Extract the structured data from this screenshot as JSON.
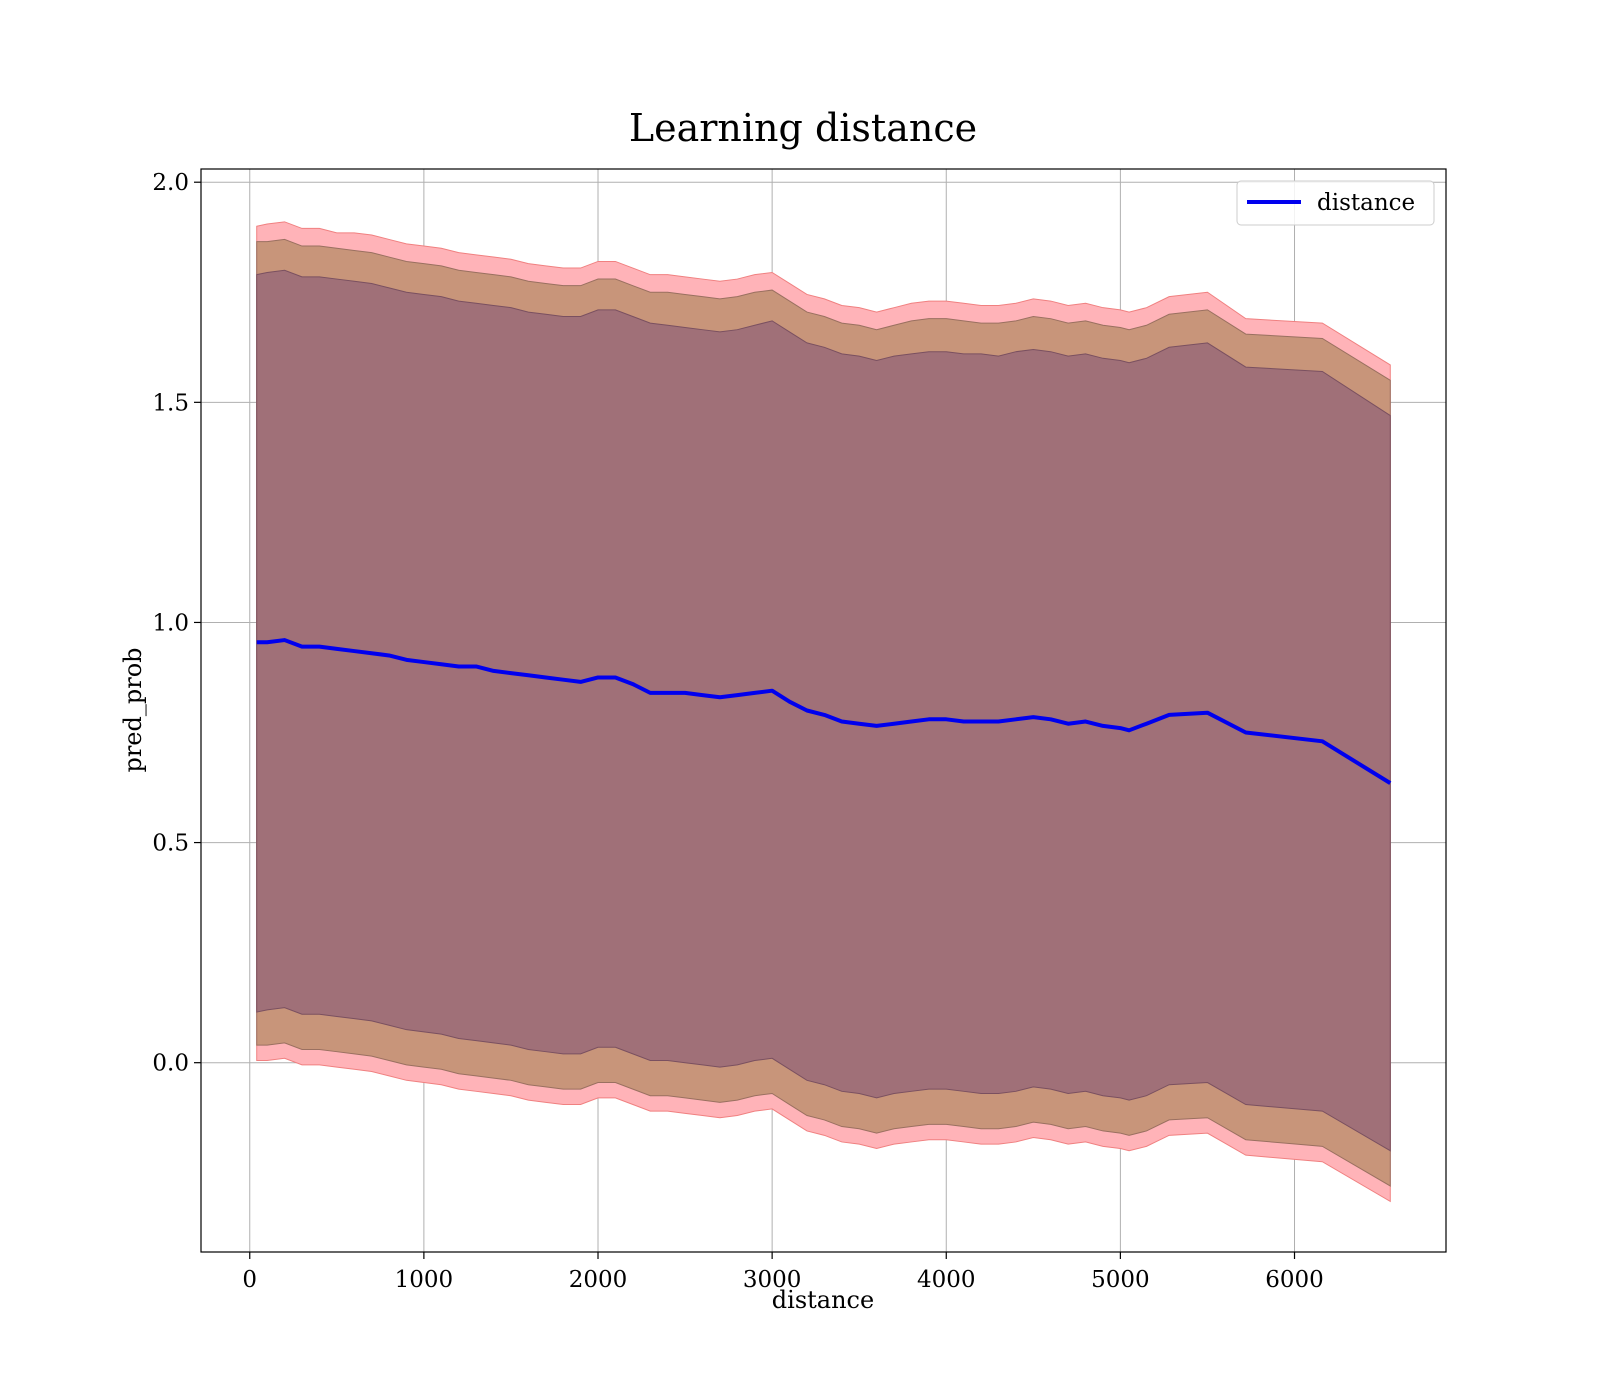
{
  "chart_data": {
    "type": "line",
    "title": "Learning distance",
    "xlabel": "distance",
    "ylabel": "pred_prob",
    "xlim": [
      -280,
      6870
    ],
    "ylim": [
      -0.43,
      2.03
    ],
    "xticks": [
      0,
      1000,
      2000,
      3000,
      4000,
      5000,
      6000
    ],
    "xtick_labels": [
      "0",
      "1000",
      "2000",
      "3000",
      "4000",
      "5000",
      "6000"
    ],
    "yticks": [
      0.0,
      0.5,
      1.0,
      1.5,
      2.0
    ],
    "ytick_labels": [
      "0.0",
      "0.5",
      "1.0",
      "1.5",
      "2.0"
    ],
    "grid": true,
    "legend_position": "top-right",
    "colors": {
      "line": "#0000ee",
      "band_outer": "#ffb3b8",
      "band_outer_edge": "#f08080",
      "band_middle": "#c8957a",
      "band_inner": "#a07078",
      "grid": "#b0b0b0"
    },
    "series": [
      {
        "name": "distance",
        "x": [
          40,
          100,
          200,
          300,
          400,
          500,
          600,
          700,
          800,
          900,
          1000,
          1100,
          1200,
          1300,
          1400,
          1500,
          1600,
          1700,
          1800,
          1900,
          2000,
          2100,
          2200,
          2300,
          2400,
          2500,
          2600,
          2700,
          2800,
          2900,
          3000,
          3100,
          3200,
          3300,
          3400,
          3500,
          3600,
          3700,
          3800,
          3900,
          4000,
          4100,
          4200,
          4300,
          4400,
          4500,
          4600,
          4700,
          4800,
          4900,
          5000,
          5050,
          5150,
          5280,
          5500,
          5720,
          6160,
          6550
        ],
        "values": [
          0.955,
          0.955,
          0.96,
          0.945,
          0.945,
          0.94,
          0.935,
          0.93,
          0.925,
          0.915,
          0.91,
          0.905,
          0.9,
          0.9,
          0.89,
          0.885,
          0.88,
          0.875,
          0.87,
          0.865,
          0.875,
          0.875,
          0.86,
          0.84,
          0.84,
          0.84,
          0.835,
          0.83,
          0.835,
          0.84,
          0.845,
          0.82,
          0.8,
          0.79,
          0.775,
          0.77,
          0.765,
          0.77,
          0.775,
          0.78,
          0.78,
          0.775,
          0.775,
          0.775,
          0.78,
          0.785,
          0.78,
          0.77,
          0.775,
          0.765,
          0.76,
          0.755,
          0.77,
          0.79,
          0.795,
          0.75,
          0.73,
          0.635
        ],
        "band_outer_upper": [
          1.9,
          1.905,
          1.91,
          1.895,
          1.895,
          1.885,
          1.885,
          1.88,
          1.87,
          1.86,
          1.855,
          1.85,
          1.84,
          1.835,
          1.83,
          1.825,
          1.815,
          1.81,
          1.805,
          1.805,
          1.82,
          1.82,
          1.805,
          1.79,
          1.79,
          1.785,
          1.78,
          1.775,
          1.78,
          1.79,
          1.795,
          1.77,
          1.745,
          1.735,
          1.72,
          1.715,
          1.705,
          1.715,
          1.725,
          1.73,
          1.73,
          1.725,
          1.72,
          1.72,
          1.725,
          1.735,
          1.73,
          1.72,
          1.725,
          1.715,
          1.71,
          1.705,
          1.715,
          1.74,
          1.75,
          1.69,
          1.68,
          1.585
        ],
        "band_middle_upper": [
          1.865,
          1.865,
          1.87,
          1.855,
          1.855,
          1.85,
          1.845,
          1.84,
          1.83,
          1.82,
          1.815,
          1.81,
          1.8,
          1.795,
          1.79,
          1.785,
          1.775,
          1.77,
          1.765,
          1.765,
          1.78,
          1.78,
          1.765,
          1.75,
          1.75,
          1.745,
          1.74,
          1.735,
          1.74,
          1.75,
          1.755,
          1.73,
          1.705,
          1.695,
          1.68,
          1.675,
          1.665,
          1.675,
          1.685,
          1.69,
          1.69,
          1.685,
          1.68,
          1.68,
          1.685,
          1.695,
          1.69,
          1.68,
          1.685,
          1.675,
          1.67,
          1.665,
          1.675,
          1.7,
          1.71,
          1.655,
          1.645,
          1.55
        ],
        "band_inner_upper": [
          1.79,
          1.795,
          1.8,
          1.785,
          1.785,
          1.78,
          1.775,
          1.77,
          1.76,
          1.75,
          1.745,
          1.74,
          1.73,
          1.725,
          1.72,
          1.715,
          1.705,
          1.7,
          1.695,
          1.695,
          1.71,
          1.71,
          1.695,
          1.68,
          1.675,
          1.67,
          1.665,
          1.66,
          1.665,
          1.675,
          1.685,
          1.66,
          1.635,
          1.625,
          1.61,
          1.605,
          1.595,
          1.605,
          1.61,
          1.615,
          1.615,
          1.61,
          1.61,
          1.605,
          1.615,
          1.62,
          1.615,
          1.605,
          1.61,
          1.6,
          1.595,
          1.59,
          1.6,
          1.625,
          1.635,
          1.58,
          1.57,
          1.47
        ],
        "band_inner_lower": [
          0.115,
          0.12,
          0.125,
          0.11,
          0.11,
          0.105,
          0.1,
          0.095,
          0.085,
          0.075,
          0.07,
          0.065,
          0.055,
          0.05,
          0.045,
          0.04,
          0.03,
          0.025,
          0.02,
          0.02,
          0.035,
          0.035,
          0.02,
          0.005,
          0.005,
          0.0,
          -0.005,
          -0.01,
          -0.005,
          0.005,
          0.01,
          -0.015,
          -0.04,
          -0.05,
          -0.065,
          -0.07,
          -0.08,
          -0.07,
          -0.065,
          -0.06,
          -0.06,
          -0.065,
          -0.07,
          -0.07,
          -0.065,
          -0.055,
          -0.06,
          -0.07,
          -0.065,
          -0.075,
          -0.08,
          -0.085,
          -0.075,
          -0.05,
          -0.045,
          -0.095,
          -0.11,
          -0.2
        ],
        "band_middle_lower": [
          0.04,
          0.04,
          0.045,
          0.03,
          0.03,
          0.025,
          0.02,
          0.015,
          0.005,
          -0.005,
          -0.01,
          -0.015,
          -0.025,
          -0.03,
          -0.035,
          -0.04,
          -0.05,
          -0.055,
          -0.06,
          -0.06,
          -0.045,
          -0.045,
          -0.06,
          -0.075,
          -0.075,
          -0.08,
          -0.085,
          -0.09,
          -0.085,
          -0.075,
          -0.07,
          -0.095,
          -0.12,
          -0.13,
          -0.145,
          -0.15,
          -0.16,
          -0.15,
          -0.145,
          -0.14,
          -0.14,
          -0.145,
          -0.15,
          -0.15,
          -0.145,
          -0.135,
          -0.14,
          -0.15,
          -0.145,
          -0.155,
          -0.16,
          -0.165,
          -0.155,
          -0.13,
          -0.125,
          -0.175,
          -0.19,
          -0.28
        ],
        "band_outer_lower": [
          0.005,
          0.005,
          0.01,
          -0.005,
          -0.005,
          -0.01,
          -0.015,
          -0.02,
          -0.03,
          -0.04,
          -0.045,
          -0.05,
          -0.06,
          -0.065,
          -0.07,
          -0.075,
          -0.085,
          -0.09,
          -0.095,
          -0.095,
          -0.08,
          -0.08,
          -0.095,
          -0.11,
          -0.11,
          -0.115,
          -0.12,
          -0.125,
          -0.12,
          -0.11,
          -0.105,
          -0.13,
          -0.155,
          -0.165,
          -0.18,
          -0.185,
          -0.195,
          -0.185,
          -0.18,
          -0.175,
          -0.175,
          -0.18,
          -0.185,
          -0.185,
          -0.18,
          -0.17,
          -0.175,
          -0.185,
          -0.18,
          -0.19,
          -0.195,
          -0.2,
          -0.19,
          -0.165,
          -0.16,
          -0.21,
          -0.225,
          -0.315
        ]
      }
    ]
  }
}
